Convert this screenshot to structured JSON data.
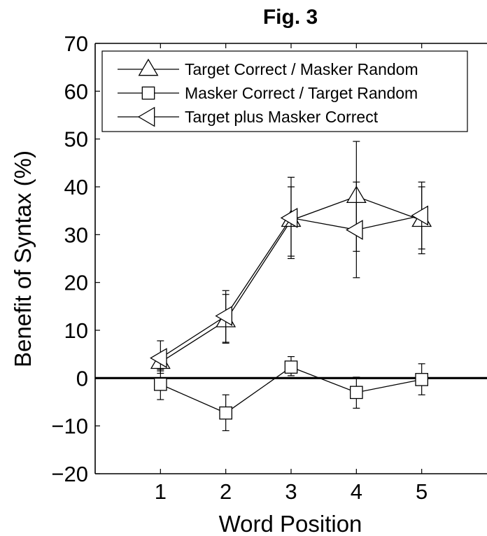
{
  "chart_data": {
    "type": "line",
    "title": "Fig. 3",
    "xlabel": "Word Position",
    "ylabel": "Benefit of Syntax (%)",
    "xlim": [
      0,
      6
    ],
    "ylim": [
      -20,
      70
    ],
    "x_ticks": [
      1,
      2,
      3,
      4,
      5
    ],
    "y_ticks": [
      -20,
      -10,
      0,
      10,
      20,
      30,
      40,
      50,
      60,
      70
    ],
    "x_tick_labels": [
      "1",
      "2",
      "3",
      "4",
      "5"
    ],
    "y_tick_labels": [
      "−20",
      "−10",
      "0",
      "10",
      "20",
      "30",
      "40",
      "50",
      "60",
      "70"
    ],
    "reference_line": 0,
    "legend_position": "top",
    "series": [
      {
        "name": "Target Correct / Masker Random",
        "marker": "triangle-up",
        "x": [
          1,
          2,
          3,
          4,
          5
        ],
        "y": [
          3.3,
          12.0,
          33.0,
          38.0,
          33.0
        ],
        "err_low": [
          1.5,
          7.3,
          25.5,
          26.5,
          27.0
        ],
        "err_high": [
          5.0,
          17.5,
          40.0,
          49.5,
          40.0
        ]
      },
      {
        "name": "Masker Correct / Target Random",
        "marker": "square",
        "x": [
          1,
          2,
          3,
          4,
          5
        ],
        "y": [
          -1.3,
          -7.3,
          2.3,
          -3.0,
          -0.3
        ],
        "err_low": [
          -4.5,
          -11.0,
          0.5,
          -6.3,
          -3.5
        ],
        "err_high": [
          1.8,
          -3.5,
          4.5,
          0.2,
          3.0
        ]
      },
      {
        "name": "Target plus Masker Correct",
        "marker": "triangle-left",
        "x": [
          1,
          2,
          3,
          4,
          5
        ],
        "y": [
          4.2,
          13.0,
          33.5,
          31.0,
          34.0
        ],
        "err_low": [
          1.0,
          7.5,
          25.0,
          21.0,
          26.0
        ],
        "err_high": [
          7.8,
          18.3,
          42.0,
          41.0,
          41.0
        ]
      }
    ]
  }
}
